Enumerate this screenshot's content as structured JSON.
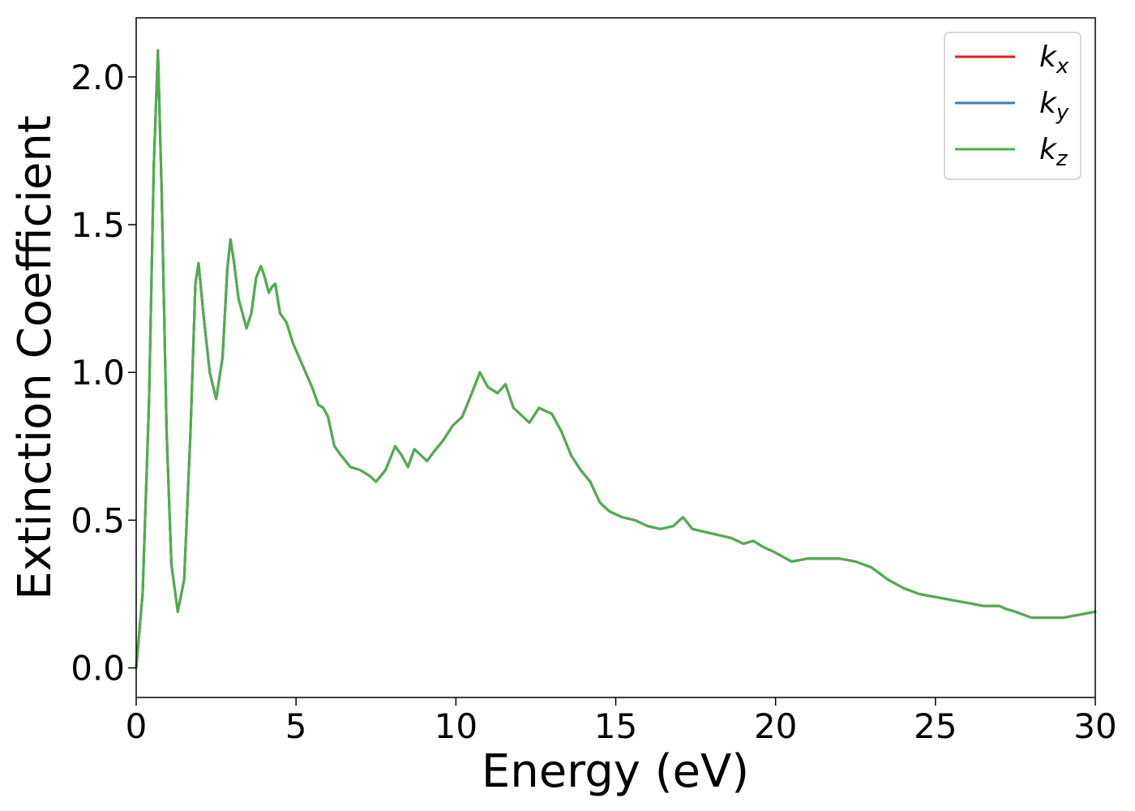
{
  "chart_data": {
    "type": "line",
    "title": "",
    "xlabel": "Energy (eV)",
    "ylabel": "Extinction Coefficient",
    "xlim": [
      0,
      30
    ],
    "ylim": [
      -0.1,
      2.2
    ],
    "xticks": [
      0,
      5,
      10,
      15,
      20,
      25,
      30
    ],
    "xtick_labels": [
      "0",
      "5",
      "10",
      "15",
      "20",
      "25",
      "30"
    ],
    "yticks": [
      0.0,
      0.5,
      1.0,
      1.5,
      2.0
    ],
    "ytick_labels": [
      "0.0",
      "0.5",
      "1.0",
      "1.5",
      "2.0"
    ],
    "grid": false,
    "legend": {
      "position": "top-right",
      "entries": [
        {
          "base": "k",
          "sub": "x",
          "color": "#e41a1c"
        },
        {
          "base": "k",
          "sub": "y",
          "color": "#377eb8"
        },
        {
          "base": "k",
          "sub": "z",
          "color": "#4daf4a"
        }
      ]
    },
    "x": [
      0,
      0.2,
      0.4,
      0.55,
      0.68,
      0.8,
      0.95,
      1.1,
      1.3,
      1.5,
      1.7,
      1.85,
      1.95,
      2.1,
      2.3,
      2.5,
      2.7,
      2.85,
      2.95,
      3.05,
      3.2,
      3.45,
      3.6,
      3.75,
      3.9,
      4.0,
      4.15,
      4.25,
      4.35,
      4.5,
      4.7,
      4.9,
      5.1,
      5.3,
      5.5,
      5.7,
      5.85,
      6.0,
      6.2,
      6.4,
      6.7,
      7.0,
      7.3,
      7.5,
      7.8,
      8.1,
      8.3,
      8.5,
      8.7,
      8.9,
      9.1,
      9.3,
      9.6,
      9.9,
      10.2,
      10.5,
      10.75,
      11.0,
      11.3,
      11.55,
      11.8,
      12.0,
      12.3,
      12.6,
      12.8,
      13.0,
      13.3,
      13.6,
      13.9,
      14.2,
      14.5,
      14.8,
      15.2,
      15.6,
      16.0,
      16.4,
      16.8,
      17.1,
      17.4,
      17.8,
      18.2,
      18.6,
      19.0,
      19.3,
      19.6,
      20.0,
      20.5,
      21.0,
      21.5,
      22.0,
      22.5,
      23.0,
      23.5,
      24.0,
      24.5,
      25.0,
      25.5,
      26.0,
      26.5,
      26.8,
      27.0,
      27.2,
      27.5,
      28.0,
      28.5,
      29.0,
      29.5,
      30.0
    ],
    "series": [
      {
        "name": "k_x",
        "color": "#e41a1c",
        "values": [
          0.0,
          0.25,
          0.9,
          1.7,
          2.09,
          1.6,
          0.8,
          0.35,
          0.19,
          0.3,
          0.8,
          1.3,
          1.37,
          1.2,
          1.0,
          0.91,
          1.05,
          1.35,
          1.45,
          1.38,
          1.25,
          1.15,
          1.2,
          1.32,
          1.36,
          1.33,
          1.27,
          1.29,
          1.3,
          1.2,
          1.17,
          1.1,
          1.05,
          1.0,
          0.95,
          0.89,
          0.88,
          0.85,
          0.75,
          0.72,
          0.68,
          0.67,
          0.65,
          0.63,
          0.67,
          0.75,
          0.72,
          0.68,
          0.74,
          0.72,
          0.7,
          0.73,
          0.77,
          0.82,
          0.85,
          0.93,
          1.0,
          0.95,
          0.93,
          0.96,
          0.88,
          0.86,
          0.83,
          0.88,
          0.87,
          0.86,
          0.8,
          0.72,
          0.67,
          0.63,
          0.56,
          0.53,
          0.51,
          0.5,
          0.48,
          0.47,
          0.48,
          0.51,
          0.47,
          0.46,
          0.45,
          0.44,
          0.42,
          0.43,
          0.41,
          0.39,
          0.36,
          0.37,
          0.37,
          0.37,
          0.36,
          0.34,
          0.3,
          0.27,
          0.25,
          0.24,
          0.23,
          0.22,
          0.21,
          0.21,
          0.21,
          0.2,
          0.19,
          0.17,
          0.17,
          0.17,
          0.18,
          0.19
        ]
      },
      {
        "name": "k_y",
        "color": "#377eb8",
        "values": [
          0.0,
          0.25,
          0.9,
          1.7,
          2.09,
          1.6,
          0.8,
          0.35,
          0.19,
          0.3,
          0.8,
          1.3,
          1.37,
          1.2,
          1.0,
          0.91,
          1.05,
          1.35,
          1.45,
          1.38,
          1.25,
          1.15,
          1.2,
          1.32,
          1.36,
          1.33,
          1.27,
          1.29,
          1.3,
          1.2,
          1.17,
          1.1,
          1.05,
          1.0,
          0.95,
          0.89,
          0.88,
          0.85,
          0.75,
          0.72,
          0.68,
          0.67,
          0.65,
          0.63,
          0.67,
          0.75,
          0.72,
          0.68,
          0.74,
          0.72,
          0.7,
          0.73,
          0.77,
          0.82,
          0.85,
          0.93,
          1.0,
          0.95,
          0.93,
          0.96,
          0.88,
          0.86,
          0.83,
          0.88,
          0.87,
          0.86,
          0.8,
          0.72,
          0.67,
          0.63,
          0.56,
          0.53,
          0.51,
          0.5,
          0.48,
          0.47,
          0.48,
          0.51,
          0.47,
          0.46,
          0.45,
          0.44,
          0.42,
          0.43,
          0.41,
          0.39,
          0.36,
          0.37,
          0.37,
          0.37,
          0.36,
          0.34,
          0.3,
          0.27,
          0.25,
          0.24,
          0.23,
          0.22,
          0.21,
          0.21,
          0.21,
          0.2,
          0.19,
          0.17,
          0.17,
          0.17,
          0.18,
          0.19
        ]
      },
      {
        "name": "k_z",
        "color": "#4daf4a",
        "values": [
          0.0,
          0.25,
          0.9,
          1.7,
          2.09,
          1.6,
          0.8,
          0.35,
          0.19,
          0.3,
          0.8,
          1.3,
          1.37,
          1.2,
          1.0,
          0.91,
          1.05,
          1.35,
          1.45,
          1.38,
          1.25,
          1.15,
          1.2,
          1.32,
          1.36,
          1.33,
          1.27,
          1.29,
          1.3,
          1.2,
          1.17,
          1.1,
          1.05,
          1.0,
          0.95,
          0.89,
          0.88,
          0.85,
          0.75,
          0.72,
          0.68,
          0.67,
          0.65,
          0.63,
          0.67,
          0.75,
          0.72,
          0.68,
          0.74,
          0.72,
          0.7,
          0.73,
          0.77,
          0.82,
          0.85,
          0.93,
          1.0,
          0.95,
          0.93,
          0.96,
          0.88,
          0.86,
          0.83,
          0.88,
          0.87,
          0.86,
          0.8,
          0.72,
          0.67,
          0.63,
          0.56,
          0.53,
          0.51,
          0.5,
          0.48,
          0.47,
          0.48,
          0.51,
          0.47,
          0.46,
          0.45,
          0.44,
          0.42,
          0.43,
          0.41,
          0.39,
          0.36,
          0.37,
          0.37,
          0.37,
          0.36,
          0.34,
          0.3,
          0.27,
          0.25,
          0.24,
          0.23,
          0.22,
          0.21,
          0.21,
          0.21,
          0.2,
          0.19,
          0.17,
          0.17,
          0.17,
          0.18,
          0.19
        ]
      }
    ]
  }
}
